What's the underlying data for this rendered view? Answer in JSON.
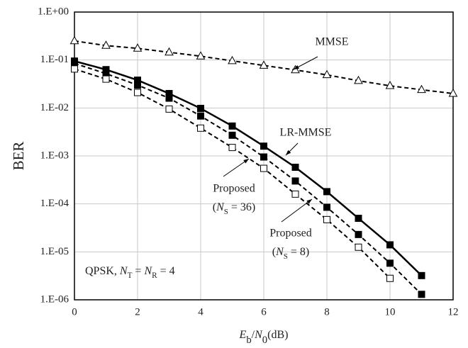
{
  "chart_data": {
    "type": "line",
    "y_label": "BER",
    "x_label_parts": [
      "E",
      "b",
      "/",
      "N",
      "0",
      "(dB)"
    ],
    "x": [
      0,
      1,
      2,
      3,
      4,
      5,
      6,
      7,
      8,
      9,
      10,
      11,
      12
    ],
    "xlim": [
      0,
      12
    ],
    "xticks": [
      0,
      2,
      4,
      6,
      8,
      10,
      12
    ],
    "ylim": [
      1e-06,
      1
    ],
    "log_y": true,
    "yticks": [
      {
        "value": 1,
        "label": "1.E+00"
      },
      {
        "value": 0.1,
        "label": "1.E-01"
      },
      {
        "value": 0.01,
        "label": "1.E-02"
      },
      {
        "value": 0.001,
        "label": "1.E-03"
      },
      {
        "value": 0.0001,
        "label": "1.E-04"
      },
      {
        "value": 1e-05,
        "label": "1.E-05"
      },
      {
        "value": 1e-06,
        "label": "1.E-06"
      }
    ],
    "grid": true,
    "series": [
      {
        "name": "MMSE",
        "color": "#000000",
        "dashed": true,
        "marker": "triangle",
        "marker_filled": false,
        "values": [
          0.25,
          0.2,
          0.175,
          0.145,
          0.12,
          0.096,
          0.077,
          0.062,
          0.049,
          0.037,
          0.029,
          0.024,
          0.02
        ]
      },
      {
        "name": "LR-MMSE",
        "color": "#000000",
        "dashed": false,
        "marker": "square",
        "marker_filled": true,
        "values": [
          0.095,
          0.063,
          0.038,
          0.02,
          0.0098,
          0.0042,
          0.0016,
          0.00058,
          0.00018,
          5e-05,
          1.4e-05,
          3.2e-06,
          null
        ]
      },
      {
        "label_parts": [
          "Proposed",
          "(",
          "N",
          "S",
          " = 36)"
        ],
        "color": "#000000",
        "dashed": true,
        "marker": "square",
        "marker_filled": true,
        "values": [
          0.085,
          0.052,
          0.03,
          0.016,
          0.0068,
          0.0027,
          0.00095,
          0.0003,
          8.5e-05,
          2.3e-05,
          5.8e-06,
          1.3e-06,
          null
        ]
      },
      {
        "label_parts": [
          "Proposed",
          "(",
          "N",
          "S",
          " = 8)"
        ],
        "color": "#000000",
        "dashed": true,
        "marker": "square",
        "marker_filled": false,
        "values": [
          0.065,
          0.04,
          0.021,
          0.0095,
          0.0038,
          0.0015,
          0.00055,
          0.00016,
          4.7e-05,
          1.25e-05,
          2.8e-06,
          null,
          null
        ]
      }
    ],
    "note_parts": [
      "QPSK, ",
      "N",
      "T",
      " = ",
      "N",
      "R",
      " = 4"
    ]
  }
}
